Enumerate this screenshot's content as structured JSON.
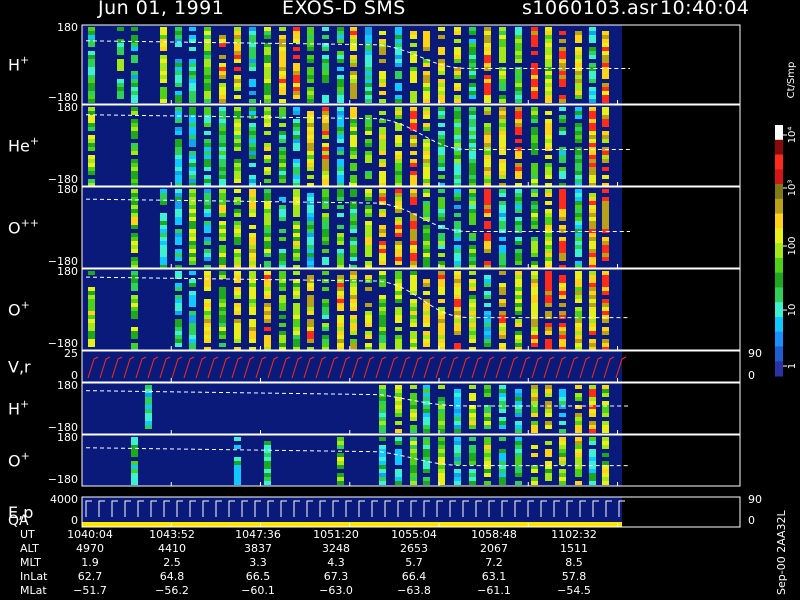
{
  "header": {
    "date": "Jun 01, 1991",
    "instrument": "EXOS-D SMS",
    "file": "s1060103.asr",
    "time": "10:40:04"
  },
  "colors": {
    "background": "#000000",
    "frame": "#ffffff",
    "plot_bg": "#0a1a7a",
    "dashed_trace": "#ffffff",
    "velocity_trace": "#ff2a10",
    "qa_bar": "#ffe600"
  },
  "colorbar": {
    "unit_label": "Ct/Smp",
    "tick_labels": [
      "1",
      "10",
      "100",
      "10³",
      "10⁴"
    ],
    "colors": [
      "#2a33a6",
      "#1d5fd0",
      "#1890ff",
      "#10c8ff",
      "#3df0d0",
      "#2ed05a",
      "#1fa81f",
      "#4fd11a",
      "#a4e81a",
      "#e8f01a",
      "#ffd21a",
      "#b8a018",
      "#7e7a18",
      "#d41515",
      "#ff2a1a",
      "#8a0a0a",
      "#ffffff"
    ]
  },
  "chart_data": {
    "type": "heatmap",
    "x_ticks": [
      "1040:04",
      "1043:52",
      "1047:36",
      "1051:20",
      "1055:04",
      "1058:48",
      "1102:32"
    ],
    "panels": [
      {
        "name": "H+",
        "label": "H",
        "sup": "+",
        "ylim": [
          -180,
          180
        ],
        "ytick_top": "180",
        "ytick_bottom": "−180",
        "intensity": 0.9,
        "dashed_drop": [
          0.2,
          0.55
        ]
      },
      {
        "name": "He+",
        "label": "He",
        "sup": "+",
        "ylim": [
          -180,
          180
        ],
        "ytick_top": "180",
        "ytick_bottom": "−180",
        "intensity": 0.7,
        "dashed_drop": [
          0.12,
          0.55
        ]
      },
      {
        "name": "O++",
        "label": "O",
        "sup": "++",
        "ylim": [
          -180,
          180
        ],
        "ytick_top": "180",
        "ytick_bottom": "−180",
        "intensity": 0.7,
        "dashed_drop": [
          0.15,
          0.55
        ]
      },
      {
        "name": "O+",
        "label": "O",
        "sup": "+",
        "ylim": [
          -180,
          180
        ],
        "ytick_top": "180",
        "ytick_bottom": "−180",
        "intensity": 0.7,
        "dashed_drop": [
          0.1,
          0.6
        ]
      },
      {
        "name": "V,r",
        "label": "V,r",
        "sup": "",
        "ylim": [
          0,
          25
        ],
        "ytick_top": "25",
        "ytick_bottom": "0",
        "right_top": "90",
        "right_bottom": "0"
      },
      {
        "name": "H+ (2)",
        "label": "H",
        "sup": "+",
        "ylim": [
          -180,
          180
        ],
        "ytick_top": "180",
        "ytick_bottom": "−180",
        "intensity": 0.35,
        "dashed_drop": [
          0.15,
          0.45
        ]
      },
      {
        "name": "O+ (2)",
        "label": "O",
        "sup": "+",
        "ylim": [
          -180,
          180
        ],
        "ytick_top": "180",
        "ytick_bottom": "−180",
        "intensity": 0.3,
        "dashed_drop": [
          0.25,
          0.6
        ]
      },
      {
        "name": "E,p QA",
        "label": "E,p",
        "label2": "QA",
        "sup": "",
        "ylim": [
          0,
          4000
        ],
        "ytick_top": "4000",
        "ytick_bottom": "0",
        "right_top": "90",
        "right_bottom": "0"
      }
    ]
  },
  "footer": {
    "rows": [
      {
        "label": "UT",
        "values": [
          "1040:04",
          "1043:52",
          "1047:36",
          "1051:20",
          "1055:04",
          "1058:48",
          "1102:32"
        ]
      },
      {
        "label": "ALT",
        "values": [
          "4970",
          "4410",
          "3837",
          "3248",
          "2653",
          "2067",
          "1511"
        ]
      },
      {
        "label": "MLT",
        "values": [
          "1.9",
          "2.5",
          "3.3",
          "4.3",
          "5.7",
          "7.2",
          "8.5"
        ]
      },
      {
        "label": "InLat",
        "values": [
          "62.7",
          "64.8",
          "66.5",
          "67.3",
          "66.4",
          "63.1",
          "57.8"
        ]
      },
      {
        "label": "MLat",
        "values": [
          "−51.7",
          "−56.2",
          "−60.1",
          "−63.0",
          "−63.8",
          "−61.1",
          "−54.5"
        ]
      }
    ]
  },
  "side_label": "Sep-00 2AA32L"
}
